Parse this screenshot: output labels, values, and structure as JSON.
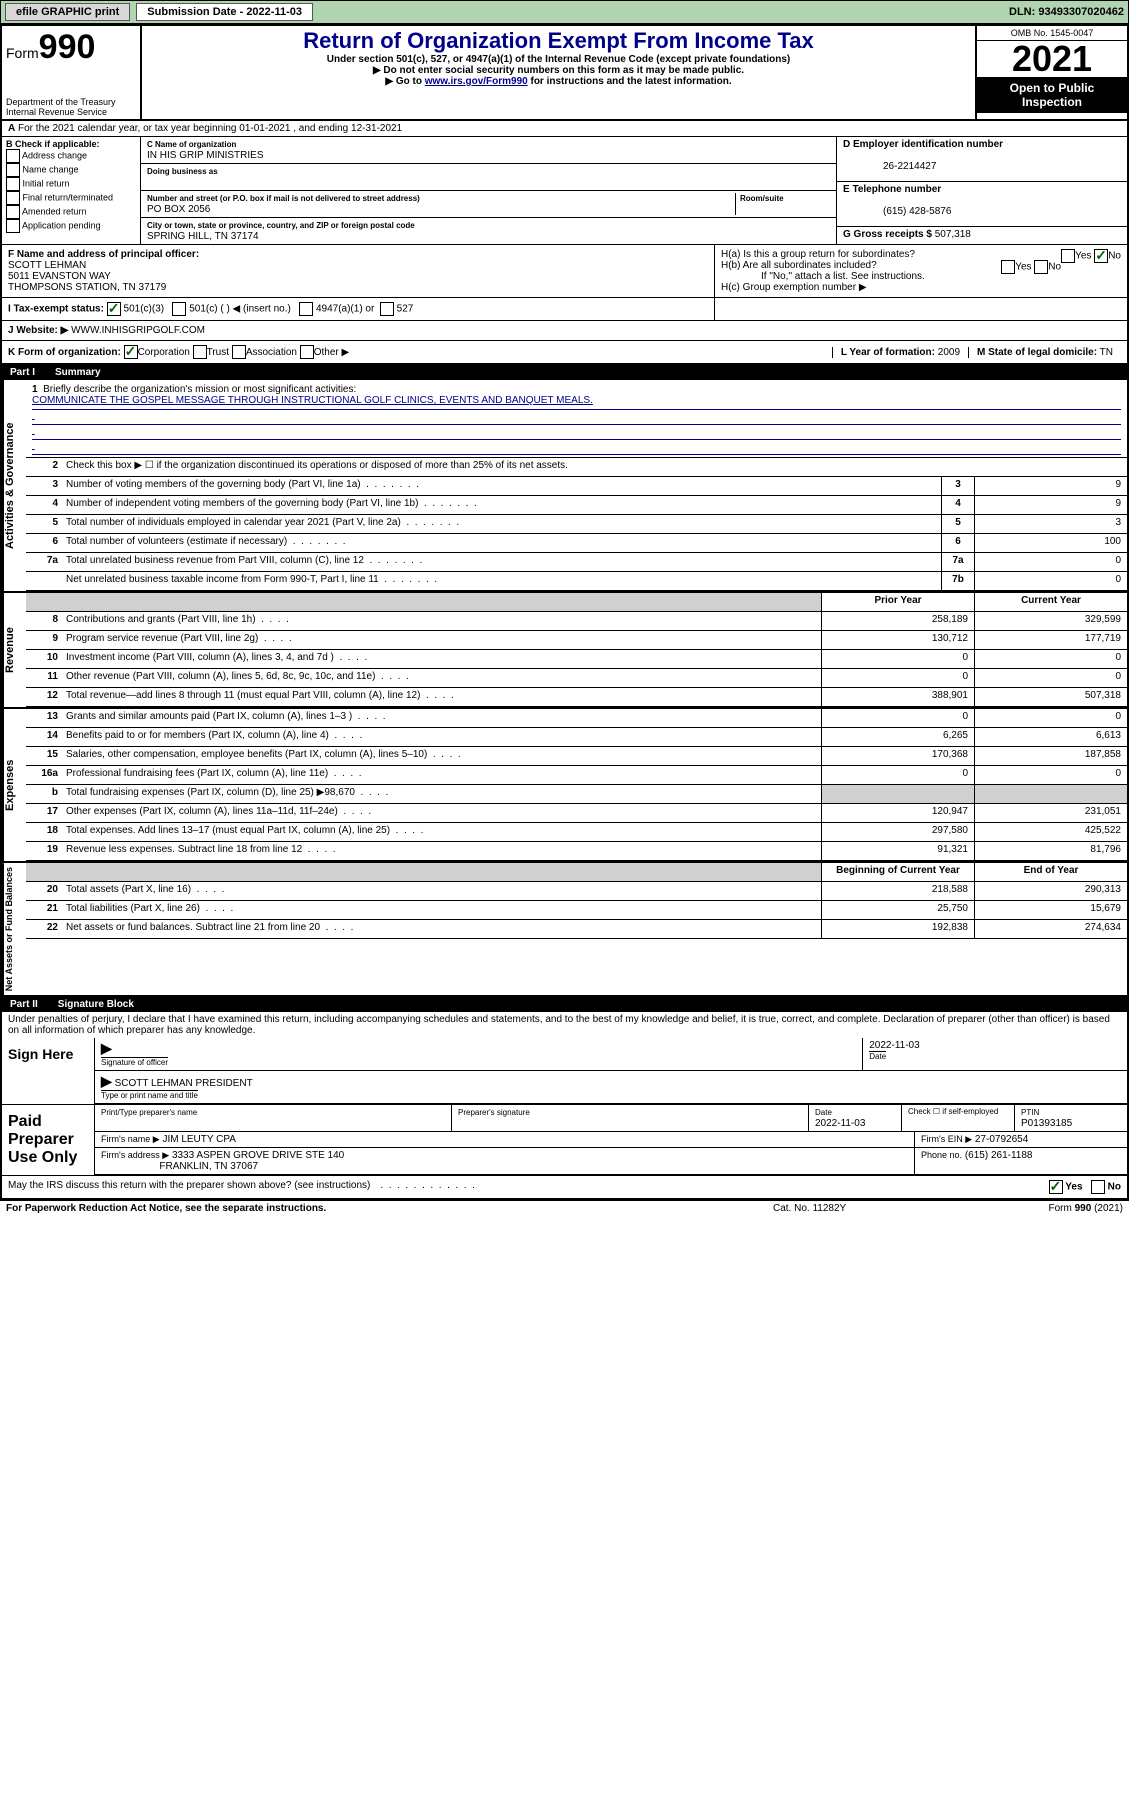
{
  "top_bar": {
    "efile_label": "efile GRAPHIC print",
    "submission_label": "Submission Date - 2022-11-03",
    "dln": "DLN: 93493307020462"
  },
  "header": {
    "form_prefix": "Form",
    "form_number": "990",
    "title": "Return of Organization Exempt From Income Tax",
    "subtitle": "Under section 501(c), 527, or 4947(a)(1) of the Internal Revenue Code (except private foundations)",
    "note1": "▶ Do not enter social security numbers on this form as it may be made public.",
    "note2_pre": "▶ Go to ",
    "note2_link": "www.irs.gov/Form990",
    "note2_post": " for instructions and the latest information.",
    "dept": "Department of the Treasury\nInternal Revenue Service",
    "omb": "OMB No. 1545-0047",
    "year": "2021",
    "inspection": "Open to Public Inspection"
  },
  "row_a": "For the 2021 calendar year, or tax year beginning 01-01-2021   , and ending 12-31-2021",
  "section_b": {
    "title": "B Check if applicable:",
    "items": [
      "Address change",
      "Name change",
      "Initial return",
      "Final return/terminated",
      "Amended return",
      "Application pending"
    ]
  },
  "section_c": {
    "name_label": "C Name of organization",
    "name": "IN HIS GRIP MINISTRIES",
    "dba_label": "Doing business as",
    "dba": "",
    "street_label": "Number and street (or P.O. box if mail is not delivered to street address)",
    "room_label": "Room/suite",
    "street": "PO BOX 2056",
    "city_label": "City or town, state or province, country, and ZIP or foreign postal code",
    "city": "SPRING HILL, TN  37174"
  },
  "section_d": {
    "ein_label": "D Employer identification number",
    "ein": "26-2214427",
    "phone_label": "E Telephone number",
    "phone": "(615) 428-5876",
    "gross_label": "G Gross receipts $",
    "gross": "507,318"
  },
  "section_f": {
    "label": "F Name and address of principal officer:",
    "name": "SCOTT LEHMAN",
    "addr1": "5011 EVANSTON WAY",
    "addr2": "THOMPSONS STATION, TN  37179"
  },
  "section_h": {
    "ha": "H(a)  Is this a group return for subordinates?",
    "hb": "H(b)  Are all subordinates included?",
    "hb_note": "If \"No,\" attach a list. See instructions.",
    "hc": "H(c)  Group exemption number ▶",
    "yes": "Yes",
    "no": "No"
  },
  "row_i": {
    "label": "I   Tax-exempt status:",
    "opt1": "501(c)(3)",
    "opt2": "501(c) (  ) ◀ (insert no.)",
    "opt3": "4947(a)(1) or",
    "opt4": "527"
  },
  "row_j": {
    "label": "J   Website: ▶",
    "value": "WWW.INHISGRIPGOLF.COM"
  },
  "row_k": {
    "label": "K Form of organization:",
    "opts": [
      "Corporation",
      "Trust",
      "Association",
      "Other ▶"
    ],
    "year_label": "L Year of formation:",
    "year": "2009",
    "state_label": "M State of legal domicile:",
    "state": "TN"
  },
  "part1": {
    "header_label": "Part I",
    "header_title": "Summary",
    "line1_label": "Briefly describe the organization's mission or most significant activities:",
    "line1_text": "COMMUNICATE THE GOSPEL MESSAGE THROUGH INSTRUCTIONAL GOLF CLINICS, EVENTS AND BANQUET MEALS.",
    "line2": "Check this box ▶ ☐  if the organization discontinued its operations or disposed of more than 25% of its net assets.",
    "rows_single": [
      {
        "n": "3",
        "desc": "Number of voting members of the governing body (Part VI, line 1a)",
        "box": "3",
        "val": "9"
      },
      {
        "n": "4",
        "desc": "Number of independent voting members of the governing body (Part VI, line 1b)",
        "box": "4",
        "val": "9"
      },
      {
        "n": "5",
        "desc": "Total number of individuals employed in calendar year 2021 (Part V, line 2a)",
        "box": "5",
        "val": "3"
      },
      {
        "n": "6",
        "desc": "Total number of volunteers (estimate if necessary)",
        "box": "6",
        "val": "100"
      },
      {
        "n": "7a",
        "desc": "Total unrelated business revenue from Part VIII, column (C), line 12",
        "box": "7a",
        "val": "0"
      },
      {
        "n": "",
        "desc": "Net unrelated business taxable income from Form 990-T, Part I, line 11",
        "box": "7b",
        "val": "0"
      }
    ],
    "col_headers": {
      "prior": "Prior Year",
      "current": "Current Year",
      "boy": "Beginning of Current Year",
      "eoy": "End of Year"
    },
    "revenue_rows": [
      {
        "n": "8",
        "desc": "Contributions and grants (Part VIII, line 1h)",
        "prior": "258,189",
        "curr": "329,599"
      },
      {
        "n": "9",
        "desc": "Program service revenue (Part VIII, line 2g)",
        "prior": "130,712",
        "curr": "177,719"
      },
      {
        "n": "10",
        "desc": "Investment income (Part VIII, column (A), lines 3, 4, and 7d )",
        "prior": "0",
        "curr": "0"
      },
      {
        "n": "11",
        "desc": "Other revenue (Part VIII, column (A), lines 5, 6d, 8c, 9c, 10c, and 11e)",
        "prior": "0",
        "curr": "0"
      },
      {
        "n": "12",
        "desc": "Total revenue—add lines 8 through 11 (must equal Part VIII, column (A), line 12)",
        "prior": "388,901",
        "curr": "507,318"
      }
    ],
    "expense_rows": [
      {
        "n": "13",
        "desc": "Grants and similar amounts paid (Part IX, column (A), lines 1–3 )",
        "prior": "0",
        "curr": "0"
      },
      {
        "n": "14",
        "desc": "Benefits paid to or for members (Part IX, column (A), line 4)",
        "prior": "6,265",
        "curr": "6,613"
      },
      {
        "n": "15",
        "desc": "Salaries, other compensation, employee benefits (Part IX, column (A), lines 5–10)",
        "prior": "170,368",
        "curr": "187,858"
      },
      {
        "n": "16a",
        "desc": "Professional fundraising fees (Part IX, column (A), line 11e)",
        "prior": "0",
        "curr": "0"
      },
      {
        "n": "b",
        "desc": "Total fundraising expenses (Part IX, column (D), line 25) ▶98,670",
        "prior": "",
        "curr": "",
        "shaded": true
      },
      {
        "n": "17",
        "desc": "Other expenses (Part IX, column (A), lines 11a–11d, 11f–24e)",
        "prior": "120,947",
        "curr": "231,051"
      },
      {
        "n": "18",
        "desc": "Total expenses. Add lines 13–17 (must equal Part IX, column (A), line 25)",
        "prior": "297,580",
        "curr": "425,522"
      },
      {
        "n": "19",
        "desc": "Revenue less expenses. Subtract line 18 from line 12",
        "prior": "91,321",
        "curr": "81,796"
      }
    ],
    "net_rows": [
      {
        "n": "20",
        "desc": "Total assets (Part X, line 16)",
        "prior": "218,588",
        "curr": "290,313"
      },
      {
        "n": "21",
        "desc": "Total liabilities (Part X, line 26)",
        "prior": "25,750",
        "curr": "15,679"
      },
      {
        "n": "22",
        "desc": "Net assets or fund balances. Subtract line 21 from line 20",
        "prior": "192,838",
        "curr": "274,634"
      }
    ],
    "side_labels": {
      "gov": "Activities & Governance",
      "rev": "Revenue",
      "exp": "Expenses",
      "net": "Net Assets or Fund Balances"
    }
  },
  "part2": {
    "header_label": "Part II",
    "header_title": "Signature Block",
    "penalty": "Under penalties of perjury, I declare that I have examined this return, including accompanying schedules and statements, and to the best of my knowledge and belief, it is true, correct, and complete. Declaration of preparer (other than officer) is based on all information of which preparer has any knowledge.",
    "sign_here": "Sign Here",
    "sig_officer": "Signature of officer",
    "date": "Date",
    "date_val": "2022-11-03",
    "officer_name": "SCOTT LEHMAN  PRESIDENT",
    "type_label": "Type or print name and title",
    "paid": "Paid Preparer Use Only",
    "p_name_lbl": "Print/Type preparer's name",
    "p_sig_lbl": "Preparer's signature",
    "p_date_lbl": "Date",
    "p_date": "2022-11-03",
    "p_check": "Check ☐ if self-employed",
    "ptin_lbl": "PTIN",
    "ptin": "P01393185",
    "firm_name_lbl": "Firm's name    ▶",
    "firm_name": "JIM LEUTY CPA",
    "firm_ein_lbl": "Firm's EIN ▶",
    "firm_ein": "27-0792654",
    "firm_addr_lbl": "Firm's address ▶",
    "firm_addr": "3333 ASPEN GROVE DRIVE STE 140",
    "firm_city": "FRANKLIN, TN  37067",
    "firm_phone_lbl": "Phone no.",
    "firm_phone": "(615) 261-1188",
    "discuss": "May the IRS discuss this return with the preparer shown above? (see instructions)",
    "yes": "Yes",
    "no": "No"
  },
  "footer": {
    "left": "For Paperwork Reduction Act Notice, see the separate instructions.",
    "center": "Cat. No. 11282Y",
    "right": "Form 990 (2021)"
  }
}
